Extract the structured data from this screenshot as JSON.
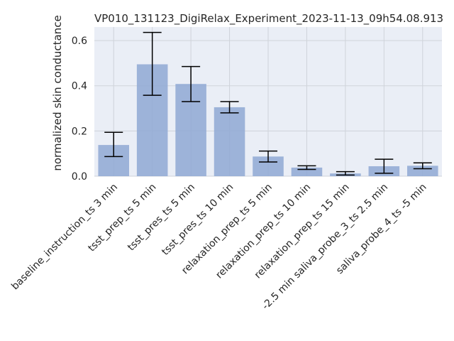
{
  "chart_data": {
    "type": "bar",
    "title": "VP010_131123_DigiRelax_Experiment_2023-11-13_09h54.08.913",
    "xlabel": "",
    "ylabel": "normalized skin conductance",
    "ylim": [
      0,
      0.66
    ],
    "yticks": [
      "0.0",
      "0.2",
      "0.4",
      "0.6"
    ],
    "ytick_values": [
      0.0,
      0.2,
      0.4,
      0.6
    ],
    "grid": true,
    "categories": [
      "baseline_instruction_ts 3 min",
      "tsst_prep_ts 5 min",
      "tsst_pres_ts 5 min",
      "tsst_pres_ts 10 min",
      "relaxation_prep_ts 5 min",
      "relaxation_prep_ts 10 min",
      "relaxation_prep_ts 15 min",
      "-2.5 min saliva_probe_3_ts 2.5 min",
      "saliva_probe_4_ts -5 min"
    ],
    "values": [
      0.138,
      0.495,
      0.408,
      0.305,
      0.087,
      0.038,
      0.012,
      0.044,
      0.046
    ],
    "error_low": [
      0.087,
      0.358,
      0.33,
      0.28,
      0.063,
      0.03,
      0.005,
      0.013,
      0.033
    ],
    "error_high": [
      0.194,
      0.636,
      0.485,
      0.33,
      0.111,
      0.046,
      0.02,
      0.075,
      0.059
    ],
    "colors": {
      "bar": "#8fa8d3",
      "plot_bg": "#eaeef6",
      "grid": "#cfd3da",
      "error": "#000000",
      "text": "#262626"
    }
  }
}
